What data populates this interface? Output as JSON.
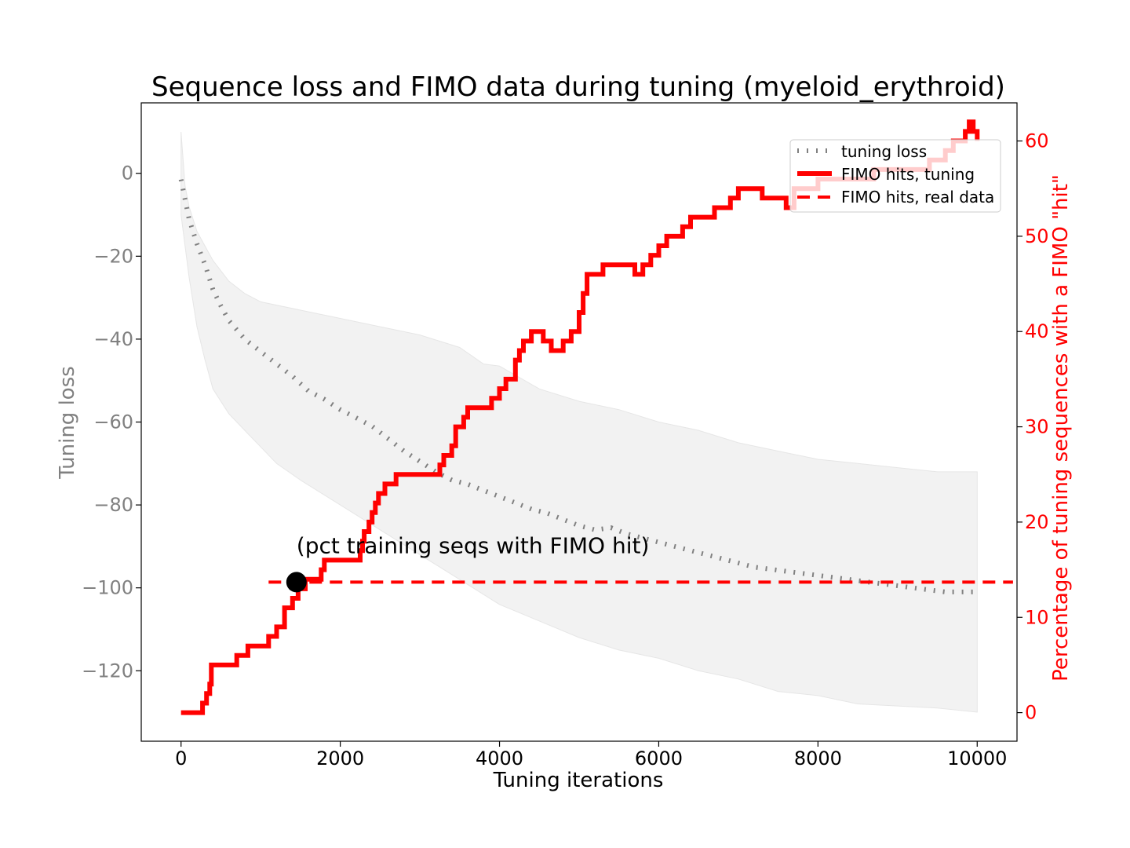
{
  "chart_data": {
    "type": "line",
    "title": "Sequence loss and FIMO data during tuning (myeloid_erythroid)",
    "xlabel": "Tuning iterations",
    "ylabel_left": "Tuning loss",
    "ylabel_right": "Percentage of tuning sequences with a FIMO \"hit\"",
    "xlim": [
      -500,
      10500
    ],
    "ylim_left": [
      -137,
      17
    ],
    "ylim_right": [
      -3,
      64
    ],
    "x_ticks": [
      0,
      2000,
      4000,
      6000,
      8000,
      10000
    ],
    "x_tick_labels": [
      "0",
      "2000",
      "4000",
      "6000",
      "8000",
      "10000"
    ],
    "y_left_ticks": [
      0,
      -20,
      -40,
      -60,
      -80,
      -100,
      -120
    ],
    "y_left_tick_labels": [
      "0",
      "−20",
      "−40",
      "−60",
      "−80",
      "−100",
      "−120"
    ],
    "y_right_ticks": [
      0,
      10,
      20,
      30,
      40,
      50,
      60
    ],
    "y_right_tick_labels": [
      "0",
      "10",
      "20",
      "30",
      "40",
      "50",
      "60"
    ],
    "legend_position": "top-right",
    "annotation": {
      "text": "(pct training seqs with FIMO hit)",
      "x": 1450,
      "y_right": 13.7
    },
    "series": [
      {
        "name": "tuning loss",
        "axis": "left",
        "style": "dotted",
        "color": "#808080",
        "x": [
          0,
          100,
          200,
          300,
          400,
          500,
          600,
          800,
          1000,
          1200,
          1400,
          1600,
          1800,
          2000,
          2200,
          2400,
          2600,
          2800,
          3000,
          3200,
          3400,
          3600,
          3800,
          4000,
          4200,
          4400,
          4600,
          4800,
          5000,
          5200,
          5400,
          5600,
          5800,
          6000,
          6200,
          6400,
          6600,
          6800,
          7000,
          7200,
          7400,
          7600,
          7800,
          8000,
          8200,
          8400,
          8600,
          8800,
          9000,
          9200,
          9400,
          9600,
          9800,
          10000
        ],
        "values": [
          -1.5,
          -11,
          -17,
          -22,
          -28,
          -32,
          -35.5,
          -40,
          -43,
          -46,
          -49,
          -52.5,
          -54.5,
          -57,
          -59,
          -61,
          -64,
          -67,
          -69.5,
          -72,
          -74,
          -75,
          -76.5,
          -78,
          -79.5,
          -81,
          -82,
          -83.5,
          -85,
          -86,
          -85.5,
          -87,
          -88,
          -89,
          -90,
          -91,
          -92,
          -93,
          -94,
          -95,
          -95.5,
          -96,
          -96.5,
          -97,
          -97.5,
          -98,
          -98.5,
          -99,
          -99.5,
          -100,
          -100.5,
          -101,
          -101,
          -101
        ]
      },
      {
        "name": "loss band upper",
        "axis": "left",
        "style": "band-upper",
        "color": "#f2f2f2",
        "x": [
          0,
          50,
          100,
          200,
          400,
          600,
          800,
          1000,
          1500,
          2000,
          2500,
          3000,
          3500,
          3800,
          4000,
          4500,
          5000,
          5500,
          6000,
          6500,
          7000,
          7500,
          8000,
          8500,
          9000,
          9500,
          10000
        ],
        "values": [
          10,
          -3,
          -8,
          -14,
          -21,
          -26,
          -29,
          -31,
          -33,
          -35,
          -37,
          -39,
          -42,
          -46,
          -46.5,
          -52,
          -55,
          -57,
          -60,
          -62,
          -65,
          -67,
          -69,
          -70,
          -71,
          -72,
          -72
        ]
      },
      {
        "name": "loss band lower",
        "axis": "left",
        "style": "band-lower",
        "color": "#f2f2f2",
        "x": [
          0,
          100,
          200,
          300,
          400,
          600,
          800,
          1000,
          1200,
          1500,
          2000,
          2500,
          3000,
          3500,
          4000,
          4500,
          5000,
          5500,
          6000,
          6500,
          7000,
          7500,
          8000,
          8500,
          9000,
          9500,
          10000
        ],
        "values": [
          -10,
          -25,
          -37,
          -45,
          -52,
          -58,
          -62,
          -66,
          -70,
          -74,
          -80,
          -86,
          -92,
          -98,
          -104,
          -108,
          -112,
          -115,
          -117,
          -120,
          -122,
          -125,
          -126,
          -128,
          -128.5,
          -129,
          -130
        ]
      },
      {
        "name": "FIMO hits, tuning",
        "axis": "right",
        "style": "solid",
        "color": "#ff0000",
        "x": [
          0,
          230,
          270,
          320,
          360,
          380,
          430,
          480,
          550,
          700,
          780,
          840,
          1000,
          1060,
          1100,
          1140,
          1200,
          1300,
          1400,
          1470,
          1560,
          1620,
          1760,
          1800,
          2000,
          2220,
          2250,
          2280,
          2300,
          2330,
          2360,
          2400,
          2440,
          2480,
          2520,
          2560,
          2600,
          2700,
          2800,
          2900,
          3000,
          3100,
          3250,
          3300,
          3400,
          3450,
          3550,
          3600,
          3700,
          3800,
          3900,
          4000,
          4080,
          4200,
          4250,
          4300,
          4400,
          4550,
          4650,
          4800,
          4900,
          5000,
          5050,
          5100,
          5200,
          5300,
          5500,
          5700,
          5800,
          5900,
          6000,
          6100,
          6200,
          6300,
          6400,
          6500,
          6700,
          6800,
          6900,
          7000,
          7300,
          7500,
          7600,
          7700,
          7800,
          8000,
          8200,
          8500,
          8700,
          8800,
          9000,
          9200,
          9400,
          9500,
          9600,
          9700,
          9800,
          9850,
          9900,
          9950,
          10000
        ],
        "values": [
          0,
          0,
          1,
          2,
          3,
          5,
          5,
          5,
          5,
          6,
          6,
          7,
          7,
          7,
          8,
          8,
          9,
          11,
          12,
          13,
          14,
          14,
          15,
          16,
          16,
          16,
          17,
          18,
          19,
          19,
          20,
          21,
          22,
          23,
          23,
          24,
          24,
          25,
          25,
          25,
          25,
          25,
          26,
          27,
          28,
          30,
          31,
          32,
          32,
          32,
          33,
          34,
          35,
          37,
          38,
          39,
          40,
          39,
          38,
          39,
          40,
          42,
          44,
          46,
          46,
          47,
          47,
          46,
          47,
          48,
          49,
          50,
          50,
          51,
          52,
          52,
          53,
          53,
          54,
          55,
          54,
          54,
          53,
          55,
          55,
          56,
          56,
          56,
          57,
          57,
          57,
          57,
          58,
          58,
          59,
          60,
          60,
          61,
          62,
          61,
          60
        ]
      },
      {
        "name": "FIMO hits, real data",
        "axis": "right",
        "style": "dashed",
        "color": "#ff0000",
        "x": [
          1100,
          10450
        ],
        "values": [
          13.7,
          13.7
        ]
      }
    ]
  }
}
